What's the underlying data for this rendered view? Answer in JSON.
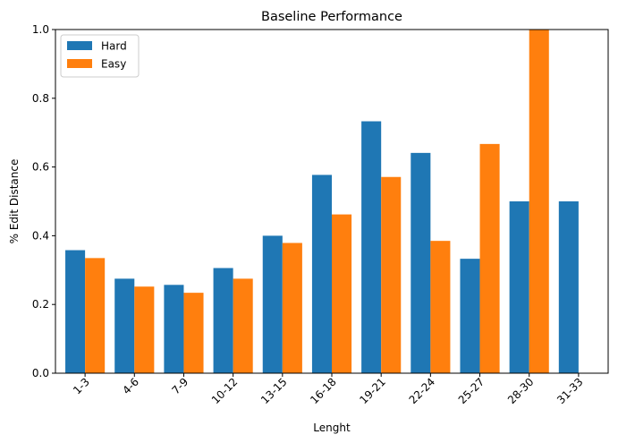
{
  "chart_data": {
    "type": "bar",
    "title": "Baseline Performance",
    "xlabel": "Lenght",
    "ylabel": "% Edit Distance",
    "categories": [
      "1-3",
      "4-6",
      "7-9",
      "10-12",
      "13-15",
      "16-18",
      "19-21",
      "22-24",
      "25-27",
      "28-30",
      "31-33"
    ],
    "series": [
      {
        "name": "Hard",
        "color": "#1f77b4",
        "values": [
          0.358,
          0.275,
          0.257,
          0.306,
          0.4,
          0.577,
          0.733,
          0.641,
          0.333,
          0.5,
          0.5
        ]
      },
      {
        "name": "Easy",
        "color": "#ff7f0e",
        "values": [
          0.335,
          0.252,
          0.234,
          0.275,
          0.379,
          0.462,
          0.571,
          0.385,
          0.667,
          1.0,
          null
        ]
      }
    ],
    "ylim": [
      0,
      1.0
    ],
    "yticks": [
      "0.0",
      "0.2",
      "0.4",
      "0.6",
      "0.8",
      "1.0"
    ],
    "legend_position": "top-left",
    "grid": false
  }
}
